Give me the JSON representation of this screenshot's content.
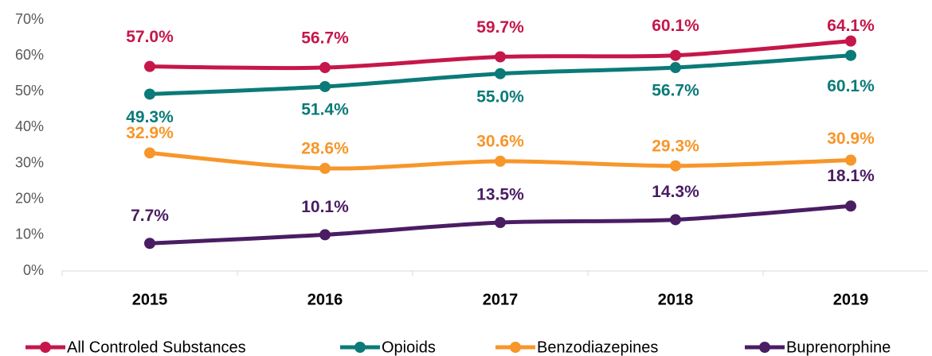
{
  "chart_data": {
    "type": "line",
    "categories": [
      "2015",
      "2016",
      "2017",
      "2018",
      "2019"
    ],
    "series": [
      {
        "name": "All Controled Substances",
        "color": "#c5174a",
        "values": [
          57.0,
          56.7,
          59.7,
          60.1,
          64.1
        ],
        "value_labels": [
          "57.0%",
          "56.7%",
          "59.7%",
          "60.1%",
          "64.1%"
        ]
      },
      {
        "name": "Opioids",
        "color": "#0b7a78",
        "values": [
          49.3,
          51.4,
          55.0,
          56.7,
          60.1
        ],
        "value_labels": [
          "49.3%",
          "51.4%",
          "55.0%",
          "56.7%",
          "60.1%"
        ]
      },
      {
        "name": "Benzodiazepines",
        "color": "#f7962a",
        "values": [
          32.9,
          28.6,
          30.6,
          29.3,
          30.9
        ],
        "value_labels": [
          "32.9%",
          "28.6%",
          "30.6%",
          "29.3%",
          "30.9%"
        ]
      },
      {
        "name": "Buprenorphine",
        "color": "#4a1d63",
        "values": [
          7.7,
          10.1,
          13.5,
          14.3,
          18.1
        ],
        "value_labels": [
          "7.7%",
          "10.1%",
          "13.5%",
          "14.3%",
          "18.1%"
        ]
      }
    ],
    "ylim": [
      0,
      70
    ],
    "yticks": [
      {
        "value": 0,
        "label": "0%"
      },
      {
        "value": 10,
        "label": "10%"
      },
      {
        "value": 20,
        "label": "20%"
      },
      {
        "value": 30,
        "label": "30%"
      },
      {
        "value": 40,
        "label": "40%"
      },
      {
        "value": 50,
        "label": "50%"
      },
      {
        "value": 60,
        "label": "60%"
      },
      {
        "value": 70,
        "label": "70%"
      }
    ],
    "legend": "bottom"
  }
}
